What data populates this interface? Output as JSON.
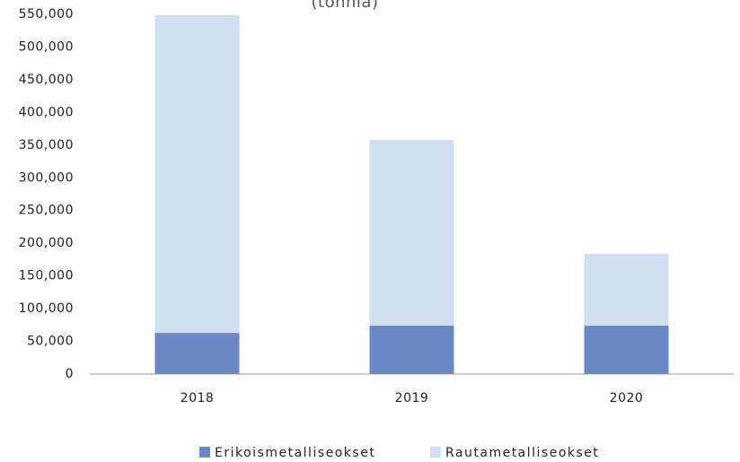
{
  "chart_data": {
    "type": "stacked_bar",
    "subtitle": "(tonnia)",
    "categories": [
      "2018",
      "2019",
      "2020"
    ],
    "series": [
      {
        "name": "Erikoismetalliseokset",
        "color": "#6a88c4",
        "values": [
          63000,
          74000,
          74000
        ]
      },
      {
        "name": "Rautametalliseokset",
        "color": "#cfdef0",
        "values": [
          486000,
          284000,
          110000
        ]
      }
    ],
    "ylim": [
      0,
      550000
    ],
    "yticks": [
      0,
      {
        "value": 50000,
        "label": "50,000"
      },
      {
        "value": 100000,
        "label": "100,000"
      },
      {
        "value": 150000,
        "label": "150,000"
      },
      {
        "value": 200000,
        "label": "200,000"
      },
      {
        "value": 250000,
        "label": "250,000"
      },
      {
        "value": 300000,
        "label": "300,000"
      },
      {
        "value": 350000,
        "label": "350,000"
      },
      {
        "value": 400000,
        "label": "400,000"
      },
      {
        "value": 450000,
        "label": "450,000"
      },
      {
        "value": 500000,
        "label": "500,000"
      },
      {
        "value": 550000,
        "label": "550,000"
      }
    ],
    "legend": "bottom"
  }
}
